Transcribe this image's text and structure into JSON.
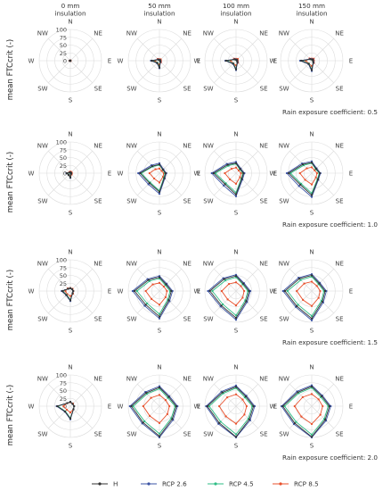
{
  "chart_data": {
    "type": "radar",
    "directions": [
      "N",
      "NE",
      "E",
      "SE",
      "S",
      "SW",
      "W",
      "NW"
    ],
    "radial_ticks": [
      0,
      25,
      50,
      75,
      100
    ],
    "rlim": [
      0,
      100
    ],
    "ylabel": "mean FTCcrit (-)",
    "columns": [
      "0 mm\ninsulation",
      "50 mm\ninsulation",
      "100 mm\ninsulation",
      "150 mm\ninsulation"
    ],
    "row_labels": [
      "Rain exposure coefficient: 0.5",
      "Rain exposure coefficient: 1.0",
      "Rain exposure coefficient: 1.5",
      "Rain exposure coefficient: 2.0"
    ],
    "legend": {
      "placement": "bottom"
    },
    "series": [
      {
        "name": "H",
        "color": "#333333"
      },
      {
        "name": "RCP 2.6",
        "color": "#3b53a4"
      },
      {
        "name": "RCP 4.5",
        "color": "#2ebd85"
      },
      {
        "name": "RCP 8.5",
        "color": "#e8502c"
      }
    ],
    "panels": [
      {
        "row": 0,
        "col": 0,
        "values": [
          [
            0,
            0,
            0,
            0,
            0,
            0,
            2,
            0
          ],
          [
            0,
            0,
            0,
            0,
            0,
            0,
            2,
            0
          ],
          [
            0,
            0,
            0,
            0,
            0,
            0,
            2,
            0
          ],
          [
            1,
            1,
            1,
            1,
            1,
            1,
            3,
            1
          ]
        ]
      },
      {
        "row": 0,
        "col": 1,
        "values": [
          [
            2,
            3,
            2,
            4,
            22,
            10,
            25,
            5
          ],
          [
            3,
            3,
            3,
            5,
            24,
            11,
            27,
            6
          ],
          [
            2,
            3,
            2,
            4,
            20,
            9,
            23,
            5
          ],
          [
            5,
            6,
            5,
            7,
            12,
            10,
            14,
            8
          ]
        ]
      },
      {
        "row": 0,
        "col": 2,
        "values": [
          [
            3,
            4,
            3,
            6,
            28,
            13,
            32,
            6
          ],
          [
            4,
            4,
            4,
            7,
            30,
            14,
            34,
            7
          ],
          [
            3,
            4,
            3,
            6,
            26,
            12,
            30,
            6
          ],
          [
            6,
            8,
            6,
            9,
            15,
            12,
            17,
            9
          ]
        ]
      },
      {
        "row": 0,
        "col": 3,
        "values": [
          [
            4,
            5,
            4,
            7,
            30,
            14,
            34,
            7
          ],
          [
            5,
            6,
            5,
            8,
            33,
            15,
            37,
            8
          ],
          [
            4,
            5,
            4,
            7,
            28,
            13,
            32,
            7
          ],
          [
            7,
            9,
            7,
            10,
            17,
            13,
            19,
            10
          ]
        ]
      },
      {
        "row": 1,
        "col": 0,
        "values": [
          [
            3,
            2,
            3,
            3,
            14,
            8,
            12,
            3
          ],
          [
            3,
            2,
            3,
            3,
            15,
            8,
            13,
            3
          ],
          [
            3,
            2,
            3,
            3,
            13,
            7,
            11,
            3
          ],
          [
            5,
            5,
            5,
            6,
            9,
            7,
            9,
            5
          ]
        ]
      },
      {
        "row": 1,
        "col": 1,
        "values": [
          [
            28,
            16,
            20,
            22,
            60,
            45,
            62,
            32
          ],
          [
            32,
            18,
            22,
            24,
            66,
            50,
            68,
            36
          ],
          [
            26,
            15,
            18,
            20,
            56,
            42,
            58,
            30
          ],
          [
            15,
            10,
            14,
            16,
            30,
            24,
            32,
            18
          ]
        ]
      },
      {
        "row": 1,
        "col": 2,
        "values": [
          [
            32,
            19,
            24,
            26,
            68,
            50,
            72,
            38
          ],
          [
            36,
            21,
            27,
            29,
            74,
            56,
            78,
            42
          ],
          [
            30,
            17,
            22,
            24,
            62,
            46,
            66,
            34
          ],
          [
            18,
            12,
            16,
            18,
            34,
            28,
            36,
            20
          ]
        ]
      },
      {
        "row": 1,
        "col": 3,
        "values": [
          [
            34,
            20,
            26,
            28,
            70,
            52,
            74,
            40
          ],
          [
            38,
            22,
            28,
            30,
            76,
            58,
            80,
            44
          ],
          [
            32,
            18,
            24,
            26,
            64,
            48,
            68,
            36
          ],
          [
            19,
            13,
            17,
            19,
            36,
            30,
            38,
            22
          ]
        ]
      },
      {
        "row": 2,
        "col": 0,
        "values": [
          [
            9,
            8,
            9,
            10,
            30,
            18,
            26,
            10
          ],
          [
            9,
            8,
            9,
            10,
            32,
            19,
            28,
            10
          ],
          [
            9,
            8,
            9,
            10,
            28,
            17,
            25,
            10
          ],
          [
            10,
            10,
            10,
            12,
            16,
            14,
            16,
            12
          ]
        ]
      },
      {
        "row": 2,
        "col": 1,
        "values": [
          [
            44,
            30,
            38,
            42,
            82,
            62,
            80,
            50
          ],
          [
            48,
            33,
            42,
            46,
            88,
            67,
            86,
            54
          ],
          [
            40,
            27,
            34,
            38,
            74,
            56,
            72,
            45
          ],
          [
            26,
            20,
            24,
            28,
            44,
            36,
            44,
            30
          ]
        ]
      },
      {
        "row": 2,
        "col": 2,
        "values": [
          [
            48,
            33,
            42,
            46,
            86,
            66,
            84,
            54
          ],
          [
            52,
            36,
            46,
            50,
            92,
            70,
            90,
            58
          ],
          [
            44,
            30,
            38,
            42,
            78,
            60,
            76,
            48
          ],
          [
            28,
            22,
            26,
            30,
            46,
            38,
            46,
            32
          ]
        ]
      },
      {
        "row": 2,
        "col": 3,
        "values": [
          [
            50,
            34,
            43,
            48,
            88,
            68,
            86,
            56
          ],
          [
            54,
            37,
            47,
            52,
            94,
            72,
            92,
            60
          ],
          [
            46,
            31,
            39,
            44,
            80,
            62,
            78,
            50
          ],
          [
            30,
            23,
            27,
            31,
            48,
            40,
            48,
            34
          ]
        ]
      },
      {
        "row": 3,
        "col": 0,
        "values": [
          [
            14,
            10,
            12,
            14,
            40,
            24,
            42,
            14
          ],
          [
            14,
            10,
            12,
            14,
            42,
            25,
            44,
            14
          ],
          [
            14,
            10,
            12,
            14,
            38,
            23,
            40,
            14
          ],
          [
            12,
            12,
            12,
            14,
            20,
            16,
            22,
            14
          ]
        ]
      },
      {
        "row": 3,
        "col": 1,
        "values": [
          [
            60,
            42,
            54,
            58,
            96,
            74,
            90,
            60
          ],
          [
            64,
            45,
            58,
            62,
            100,
            78,
            95,
            64
          ],
          [
            56,
            38,
            50,
            54,
            88,
            68,
            84,
            56
          ],
          [
            36,
            28,
            32,
            36,
            54,
            44,
            52,
            38
          ]
        ]
      },
      {
        "row": 3,
        "col": 2,
        "values": [
          [
            62,
            44,
            56,
            60,
            98,
            76,
            92,
            62
          ],
          [
            66,
            47,
            60,
            64,
            100,
            80,
            96,
            66
          ],
          [
            58,
            40,
            52,
            56,
            90,
            70,
            86,
            58
          ],
          [
            38,
            30,
            34,
            38,
            56,
            46,
            54,
            40
          ]
        ]
      },
      {
        "row": 3,
        "col": 3,
        "values": [
          [
            63,
            45,
            57,
            61,
            98,
            77,
            93,
            63
          ],
          [
            67,
            48,
            61,
            65,
            100,
            81,
            97,
            67
          ],
          [
            59,
            41,
            53,
            57,
            91,
            71,
            87,
            59
          ],
          [
            39,
            31,
            35,
            39,
            57,
            47,
            55,
            41
          ]
        ]
      }
    ]
  }
}
